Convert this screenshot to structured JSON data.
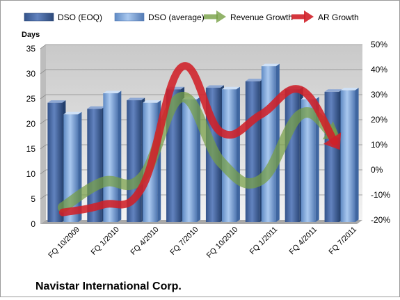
{
  "chart_data": {
    "type": "bar",
    "title": "",
    "company_label": "Navistar International Corp.",
    "y_left_label": "Days",
    "y_left_range": [
      0,
      35
    ],
    "y_left_ticks": [
      0,
      5,
      10,
      15,
      20,
      25,
      30,
      35
    ],
    "y_right_range": [
      -20,
      50
    ],
    "y_right_ticks": [
      "-20%",
      "-10%",
      "0%",
      "10%",
      "20%",
      "30%",
      "40%",
      "50%"
    ],
    "categories": [
      "FQ 10/2009",
      "FQ 1/2010",
      "FQ 4/2010",
      "FQ 7/2010",
      "FQ 10/2010",
      "FQ 1/2011",
      "FQ 4/2011",
      "FQ 7/2011"
    ],
    "gridlines": true,
    "legend_position": "top",
    "series": [
      {
        "name": "DSO (EOQ)",
        "kind": "bar",
        "axis": "left",
        "color": "#4f6fa8",
        "values": [
          23.8,
          22.6,
          24.3,
          26.5,
          26.8,
          28.1,
          26.5,
          26.0
        ]
      },
      {
        "name": "DSO (average)",
        "kind": "bar",
        "axis": "left",
        "color": "#7fa6da",
        "values": [
          21.5,
          25.7,
          23.8,
          24.5,
          26.5,
          31.1,
          24.5,
          26.3
        ]
      },
      {
        "name": "Revenue Growth",
        "kind": "line",
        "axis": "right",
        "color": "#77a045",
        "values": [
          -15,
          -5,
          -3,
          29,
          3,
          -4,
          22,
          13
        ]
      },
      {
        "name": "AR Growth",
        "kind": "line",
        "axis": "right",
        "color": "#d02028",
        "values": [
          -17,
          -14,
          -7,
          41,
          15,
          22,
          32,
          8
        ]
      }
    ]
  }
}
